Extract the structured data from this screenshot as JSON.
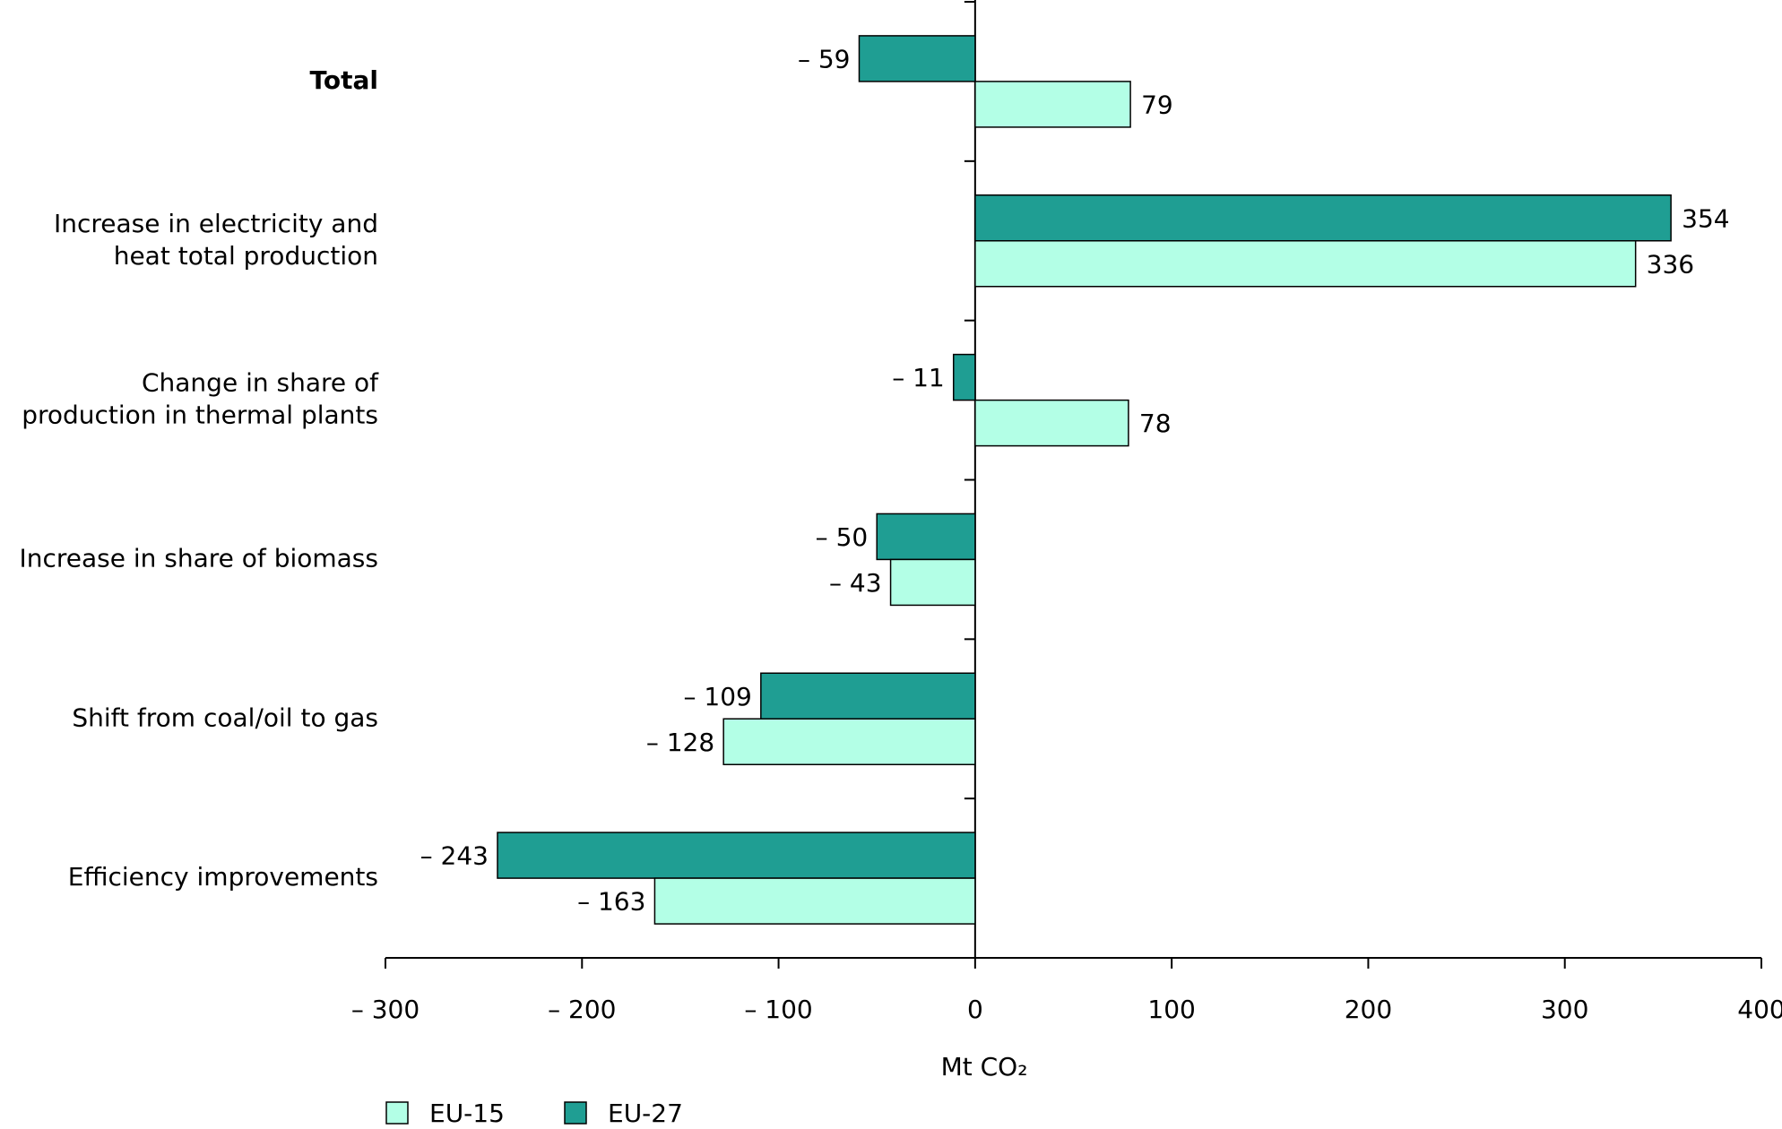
{
  "chart_data": {
    "type": "bar",
    "orientation": "horizontal",
    "categories": [
      [
        "Total"
      ],
      [
        "Increase in electricity and",
        "heat total production"
      ],
      [
        "Change in share of",
        "production in thermal plants"
      ],
      [
        "Increase in share of biomass"
      ],
      [
        "Shift from coal/oil to gas"
      ],
      [
        "Efficiency improvements"
      ]
    ],
    "series": [
      {
        "name": "EU-15",
        "color": "#b3ffe6",
        "values": [
          79,
          336,
          78,
          -43,
          -128,
          -163
        ],
        "value_labels": [
          "79",
          "336",
          "78",
          "– 43",
          "– 128",
          "– 163"
        ]
      },
      {
        "name": "EU-27",
        "color": "#1f9e93",
        "values": [
          -59,
          354,
          -11,
          -50,
          -109,
          -243
        ],
        "value_labels": [
          "– 59",
          "354",
          "– 11",
          "– 50",
          "– 109",
          "– 243"
        ]
      }
    ],
    "xlabel": "Mt CO₂",
    "xlim": [
      -300,
      400
    ],
    "xticks": [
      {
        "value": -300,
        "label": "– 300"
      },
      {
        "value": -200,
        "label": "– 200"
      },
      {
        "value": -100,
        "label": "– 100"
      },
      0,
      100,
      200,
      300,
      400
    ],
    "legend": "bottom-left"
  }
}
